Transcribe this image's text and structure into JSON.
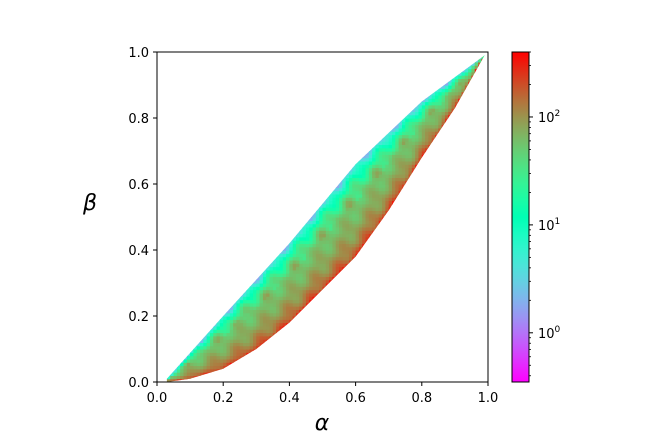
{
  "chart_data": {
    "type": "heatmap",
    "title": "",
    "xlabel": "α",
    "ylabel": "β",
    "xlim": [
      0.0,
      1.0
    ],
    "ylim": [
      0.0,
      1.0
    ],
    "xticks": [
      "0.0",
      "0.2",
      "0.4",
      "0.6",
      "0.8",
      "1.0"
    ],
    "yticks": [
      "0.0",
      "0.2",
      "0.4",
      "0.6",
      "0.8",
      "1.0"
    ],
    "grid": false,
    "colormap": "rainbow",
    "colorbar": {
      "scale": "log",
      "range": [
        0.35,
        400
      ],
      "ticks": [
        {
          "value": 1,
          "base": "10",
          "exp": "0"
        },
        {
          "value": 10,
          "base": "10",
          "exp": "1"
        },
        {
          "value": 100,
          "base": "10",
          "exp": "2"
        }
      ]
    },
    "region": {
      "upper_edge": [
        [
          0.03,
          0.01
        ],
        [
          0.2,
          0.2
        ],
        [
          0.4,
          0.42
        ],
        [
          0.6,
          0.66
        ],
        [
          0.8,
          0.85
        ],
        [
          0.99,
          0.99
        ]
      ],
      "lower_edge": [
        [
          0.03,
          0.0
        ],
        [
          0.1,
          0.01
        ],
        [
          0.2,
          0.04
        ],
        [
          0.3,
          0.1
        ],
        [
          0.4,
          0.18
        ],
        [
          0.5,
          0.28
        ],
        [
          0.6,
          0.38
        ],
        [
          0.7,
          0.52
        ],
        [
          0.8,
          0.68
        ],
        [
          0.9,
          0.83
        ],
        [
          0.99,
          0.99
        ]
      ],
      "value_near_upper_edge": 3,
      "value_in_interior": 60,
      "value_near_lower_edge": 300
    }
  }
}
